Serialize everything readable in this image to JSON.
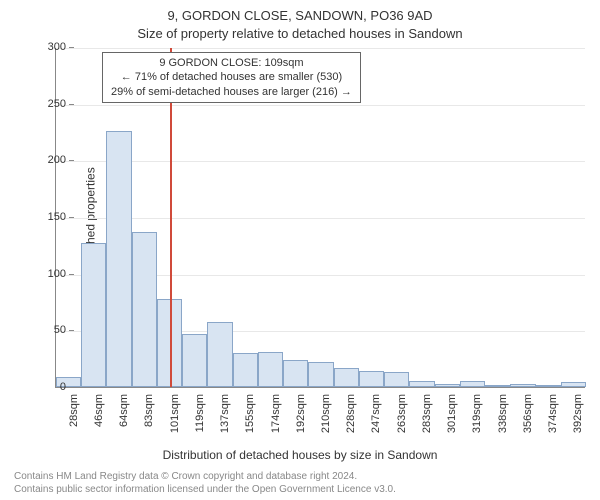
{
  "title": "9, GORDON CLOSE, SANDOWN, PO36 9AD",
  "subtitle": "Size of property relative to detached houses in Sandown",
  "ylabel": "Number of detached properties",
  "xlabel": "Distribution of detached houses by size in Sandown",
  "credit_line1": "Contains HM Land Registry data © Crown copyright and database right 2024.",
  "credit_line2": "Contains public sector information licensed under the Open Government Licence v3.0.",
  "chart": {
    "type": "histogram",
    "ylim": [
      0,
      300
    ],
    "ytick_step": 50,
    "yticks": [
      0,
      50,
      100,
      150,
      200,
      250,
      300
    ],
    "categories": [
      "28sqm",
      "46sqm",
      "64sqm",
      "83sqm",
      "101sqm",
      "119sqm",
      "137sqm",
      "155sqm",
      "174sqm",
      "192sqm",
      "210sqm",
      "228sqm",
      "247sqm",
      "263sqm",
      "283sqm",
      "301sqm",
      "319sqm",
      "338sqm",
      "356sqm",
      "374sqm",
      "392sqm"
    ],
    "values": [
      9,
      127,
      226,
      137,
      78,
      47,
      57,
      30,
      31,
      24,
      22,
      17,
      14,
      13,
      5,
      3,
      5,
      0,
      3,
      0,
      4
    ],
    "bar_fill": "#d8e4f2",
    "bar_stroke": "#8aa6c8",
    "grid_color": "#e8e8e8",
    "axis_color": "#888888",
    "background_color": "#ffffff",
    "label_fontsize": 12,
    "tick_fontsize": 11
  },
  "marker": {
    "x_index": 4.5,
    "color": "#d04a3a"
  },
  "annotation": {
    "line1": "9 GORDON CLOSE: 109sqm",
    "line2": "← 71% of detached houses are smaller (530)",
    "line3": "29% of semi-detached houses are larger (216) →"
  }
}
